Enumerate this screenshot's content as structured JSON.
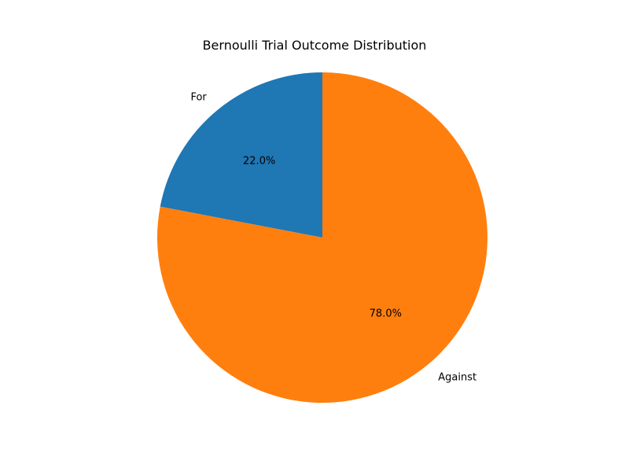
{
  "chart_data": {
    "type": "pie",
    "title": "Bernoulli Trial Outcome Distribution",
    "start_angle_deg": 90,
    "direction": "counterclockwise",
    "slices": [
      {
        "label": "For",
        "value": 22.0,
        "pct_label": "22.0%",
        "color": "#1f77b4"
      },
      {
        "label": "Against",
        "value": 78.0,
        "pct_label": "78.0%",
        "color": "#ff7f0e"
      }
    ]
  }
}
